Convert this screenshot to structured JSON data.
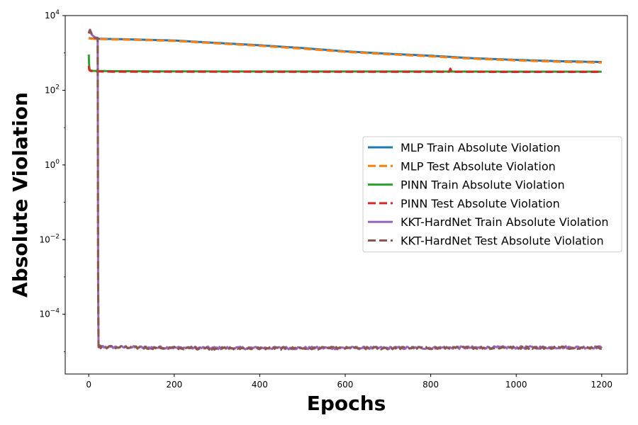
{
  "chart_data": {
    "type": "line",
    "title": "",
    "xlabel": "Epochs",
    "ylabel": "Absolute Violation",
    "xlim": [
      -55,
      1260
    ],
    "ylim_exponent": [
      -5.6,
      4
    ],
    "yscale": "log",
    "grid": false,
    "legend_position": "center-right",
    "x_ticks": [
      0,
      200,
      400,
      600,
      800,
      1000,
      1200
    ],
    "x_tick_labels": [
      "0",
      "200",
      "400",
      "600",
      "800",
      "1000",
      "1200"
    ],
    "y_ticks_exponent": [
      -4,
      -2,
      0,
      2,
      4
    ],
    "y_tick_labels": [
      {
        "base": "10",
        "exp": "−4"
      },
      {
        "base": "10",
        "exp": "−2"
      },
      {
        "base": "10",
        "exp": "0"
      },
      {
        "base": "10",
        "exp": "2"
      },
      {
        "base": "10",
        "exp": "4"
      }
    ],
    "series": [
      {
        "name": "MLP Train Absolute Violation",
        "color": "#1f77b4",
        "style": "solid",
        "x": [
          0,
          5,
          20,
          100,
          200,
          300,
          400,
          500,
          600,
          700,
          800,
          900,
          1000,
          1100,
          1200
        ],
        "y": [
          2500,
          2450,
          2400,
          2300,
          2150,
          1850,
          1600,
          1350,
          1100,
          950,
          840,
          720,
          650,
          600,
          570
        ]
      },
      {
        "name": "MLP Test Absolute Violation",
        "color": "#ff7f0e",
        "style": "dashed",
        "x": [
          0,
          5,
          20,
          100,
          200,
          300,
          400,
          500,
          600,
          700,
          800,
          900,
          1000,
          1100,
          1200
        ],
        "y": [
          2450,
          2400,
          2350,
          2250,
          2100,
          1800,
          1550,
          1300,
          1070,
          920,
          810,
          700,
          630,
          580,
          550
        ]
      },
      {
        "name": "PINN Train Absolute Violation",
        "color": "#2ca02c",
        "style": "solid",
        "x": [
          0,
          1,
          2,
          4,
          10,
          50,
          200,
          400,
          600,
          800,
          1000,
          1200
        ],
        "y": [
          900,
          450,
          360,
          340,
          330,
          325,
          320,
          318,
          318,
          318,
          316,
          315
        ]
      },
      {
        "name": "PINN Test Absolute Violation",
        "color": "#d62728",
        "style": "dashed",
        "x": [
          0,
          1,
          2,
          4,
          10,
          50,
          180,
          181,
          183,
          400,
          645,
          646,
          648,
          845,
          846,
          848,
          1000,
          1200
        ],
        "y": [
          450,
          360,
          340,
          330,
          320,
          315,
          315,
          380,
          315,
          312,
          312,
          420,
          312,
          312,
          380,
          312,
          310,
          310
        ]
      },
      {
        "name": "KKT-HardNet Train Absolute Violation",
        "color": "#9467bd",
        "style": "solid",
        "x": [
          0,
          3,
          8,
          15,
          21,
          22,
          23,
          24,
          100,
          300,
          500,
          700,
          900,
          1100,
          1200
        ],
        "y": [
          3500,
          4200,
          3000,
          2600,
          2550,
          0.001,
          1.35e-05,
          1.35e-05,
          1.3e-05,
          1.25e-05,
          1.25e-05,
          1.25e-05,
          1.28e-05,
          1.3e-05,
          1.3e-05
        ]
      },
      {
        "name": "KKT-HardNet Test Absolute Violation",
        "color": "#8c564b",
        "style": "dashed",
        "x": [
          0,
          3,
          8,
          15,
          21,
          22,
          23,
          24,
          100,
          300,
          500,
          700,
          900,
          1100,
          1200
        ],
        "y": [
          3300,
          4000,
          2900,
          2500,
          2450,
          0.001,
          1.32e-05,
          1.32e-05,
          1.28e-05,
          1.22e-05,
          1.23e-05,
          1.24e-05,
          1.27e-05,
          1.28e-05,
          1.28e-05
        ]
      }
    ]
  }
}
